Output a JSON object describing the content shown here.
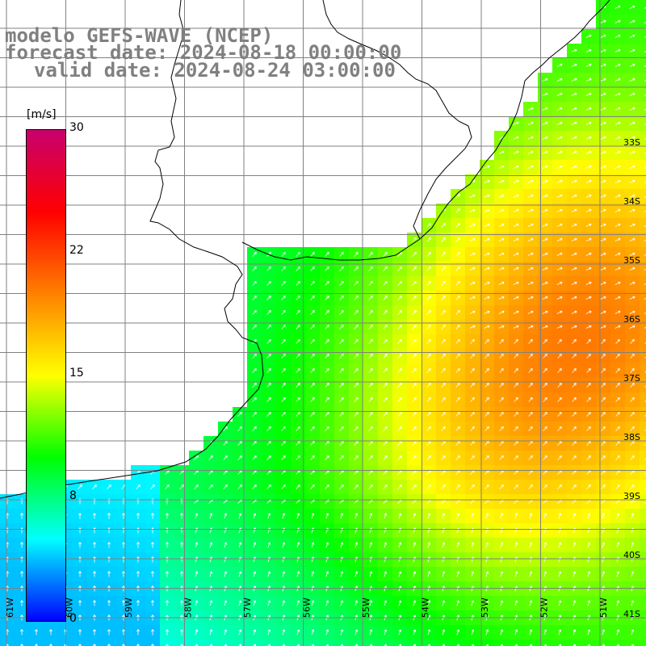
{
  "titles": {
    "line1": "modelo GEFS-WAVE (NCEP)",
    "line2": "forecast date: 2024-08-18 00:00:00",
    "line3": "valid date: 2024-08-24 03:00:00"
  },
  "colorbar": {
    "unit": "[m/s]",
    "min": 0,
    "max": 30,
    "ticks": [
      "30",
      "22",
      "15",
      "8",
      "0"
    ],
    "tick_values": [
      30,
      22,
      15,
      8,
      0
    ],
    "stops": [
      "#0000ff",
      "#00ffff",
      "#00ff00",
      "#ffff00",
      "#ff8000",
      "#ff0000",
      "#c8006e"
    ]
  },
  "lat_labels": [
    "33S",
    "34S",
    "35S",
    "36S",
    "37S",
    "38S",
    "39S",
    "40S",
    "41S"
  ],
  "lon_labels": [
    "61W",
    "60W",
    "59W",
    "58W",
    "57W",
    "56W",
    "55W",
    "54W",
    "53W",
    "52W",
    "51W"
  ],
  "map": {
    "land_color": "#ffffff",
    "grid_color": "#808080",
    "coast_color": "#000000",
    "arrow_color": "#ffffff"
  }
}
